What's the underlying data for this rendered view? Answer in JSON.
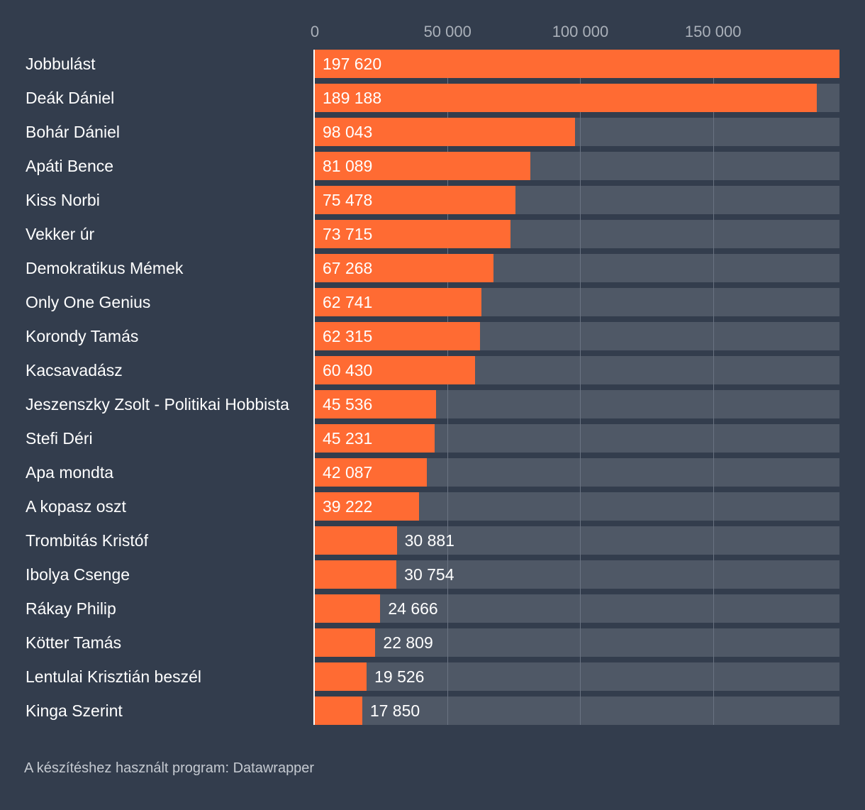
{
  "chart_data": {
    "type": "bar",
    "orientation": "horizontal",
    "xlim": [
      0,
      197620
    ],
    "ticks": [
      0,
      50000,
      100000,
      150000
    ],
    "tick_labels": [
      "0",
      "50 000",
      "100 000",
      "150 000"
    ],
    "grid": true,
    "categories": [
      "Jobbulást",
      "Deák Dániel",
      "Bohár Dániel",
      "Apáti Bence",
      "Kiss Norbi",
      "Vekker úr",
      "Demokratikus Mémek",
      "Only One Genius",
      "Korondy Tamás",
      "Kacsavadász",
      "Jeszenszky Zsolt - Politikai Hobbista",
      "Stefi Déri",
      "Apa mondta",
      "A kopasz oszt",
      "Trombitás Kristóf",
      "Ibolya Csenge",
      "Rákay Philip",
      "Kötter Tamás",
      "Lentulai Krisztián beszél",
      "Kinga Szerint"
    ],
    "values": [
      197620,
      189188,
      98043,
      81089,
      75478,
      73715,
      67268,
      62741,
      62315,
      60430,
      45536,
      45231,
      42087,
      39222,
      30881,
      30754,
      24666,
      22809,
      19526,
      17850
    ],
    "value_labels": [
      "197 620",
      "189 188",
      "98 043",
      "81 089",
      "75 478",
      "73 715",
      "67 268",
      "62 741",
      "62 315",
      "60 430",
      "45 536",
      "45 231",
      "42 087",
      "39 222",
      "30 881",
      "30 754",
      "24 666",
      "22 809",
      "19 526",
      "17 850"
    ],
    "colors": {
      "bar": "#ff6b33",
      "track": "#4f5866",
      "background": "#333d4d"
    }
  },
  "footer": "A készítéshez használt program: Datawrapper"
}
